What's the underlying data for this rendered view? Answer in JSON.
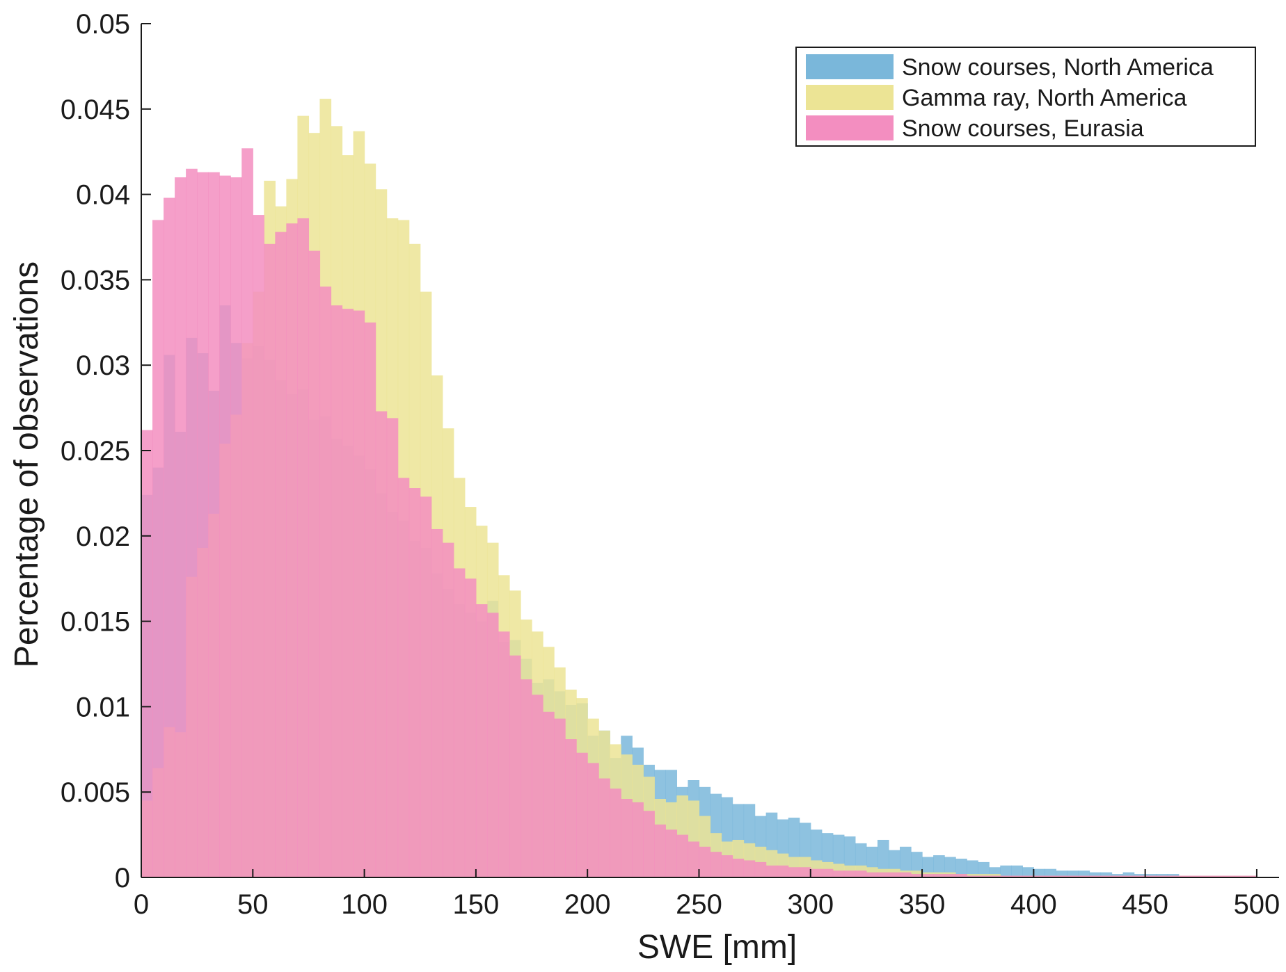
{
  "chart_data": {
    "type": "bar",
    "subtype": "overlapping-histogram",
    "title": "",
    "xlabel": "SWE [mm]",
    "ylabel": "Percentage of observations",
    "xlim": [
      0,
      510
    ],
    "ylim": [
      0,
      0.05
    ],
    "xticks": [
      0,
      50,
      100,
      150,
      200,
      250,
      300,
      350,
      400,
      450,
      500
    ],
    "yticks": [
      0,
      0.005,
      0.01,
      0.015,
      0.02,
      0.025,
      0.03,
      0.035,
      0.04,
      0.045,
      0.05
    ],
    "ytick_labels": [
      "0",
      "0.005",
      "0.01",
      "0.015",
      "0.02",
      "0.025",
      "0.03",
      "0.035",
      "0.04",
      "0.045",
      "0.05"
    ],
    "bin_width": 5,
    "grid": false,
    "legend_position": "top-right",
    "series": [
      {
        "name": "Snow courses, North America",
        "color": "#7ab7da",
        "values": [
          0.0224,
          0.024,
          0.0306,
          0.0261,
          0.0316,
          0.0307,
          0.0285,
          0.0335,
          0.0313,
          0.0304,
          0.0311,
          0.0303,
          0.0291,
          0.0283,
          0.0286,
          0.0268,
          0.027,
          0.0257,
          0.0253,
          0.0247,
          0.0239,
          0.0225,
          0.0214,
          0.0209,
          0.0197,
          0.0193,
          0.0178,
          0.0169,
          0.016,
          0.0155,
          0.015,
          0.0162,
          0.0138,
          0.0139,
          0.0128,
          0.0114,
          0.0116,
          0.0109,
          0.0101,
          0.0102,
          0.0083,
          0.0086,
          0.007,
          0.0083,
          0.0076,
          0.0066,
          0.0063,
          0.0063,
          0.0053,
          0.0057,
          0.0053,
          0.0049,
          0.0047,
          0.0043,
          0.0043,
          0.0036,
          0.0038,
          0.0034,
          0.0035,
          0.0032,
          0.0028,
          0.0026,
          0.0025,
          0.0024,
          0.002,
          0.0018,
          0.0022,
          0.0016,
          0.0018,
          0.0015,
          0.0012,
          0.0013,
          0.0012,
          0.0011,
          0.001,
          0.0009,
          0.0006,
          0.0007,
          0.0007,
          0.0006,
          0.0005,
          0.0005,
          0.0004,
          0.0004,
          0.0004,
          0.0003,
          0.0003,
          0.0002,
          0.0003,
          0.0002,
          0.0002,
          0.0002,
          0.0002,
          0.0001,
          0.0001,
          0.0001,
          0.0001,
          0.0001,
          0.0001,
          0.0001
        ]
      },
      {
        "name": "Gamma ray, North America",
        "color": "#ece495",
        "values": [
          0.0045,
          0.0064,
          0.0088,
          0.0085,
          0.0176,
          0.0193,
          0.0213,
          0.0254,
          0.0271,
          0.0313,
          0.0343,
          0.0408,
          0.0393,
          0.0409,
          0.0446,
          0.0436,
          0.0456,
          0.044,
          0.0423,
          0.0437,
          0.0418,
          0.0403,
          0.0386,
          0.0385,
          0.0371,
          0.0343,
          0.0294,
          0.0263,
          0.0234,
          0.0217,
          0.0206,
          0.0196,
          0.0177,
          0.0168,
          0.0151,
          0.0144,
          0.0135,
          0.0123,
          0.011,
          0.0105,
          0.0093,
          0.0086,
          0.0078,
          0.0072,
          0.0066,
          0.0059,
          0.0046,
          0.0044,
          0.0048,
          0.0045,
          0.0036,
          0.0026,
          0.0021,
          0.0022,
          0.002,
          0.0018,
          0.0016,
          0.0014,
          0.0012,
          0.0012,
          0.001,
          0.0009,
          0.0008,
          0.0007,
          0.0007,
          0.0006,
          0.0005,
          0.0005,
          0.0004,
          0.0004,
          0.0003,
          0.0003,
          0.0003,
          0.0002,
          0.0002,
          0.0002,
          0.0002,
          0.0001,
          0.0001,
          0.0001,
          0.0001,
          0.0001,
          0.0001,
          0.0001,
          0.0001,
          0.0001,
          0.0001,
          0.0001,
          0.0001,
          0.0001,
          0.0001,
          0.0001,
          0.0001,
          0.0001,
          0.0001,
          0.0001,
          0.0001,
          0.0001,
          0.0001,
          0.0001
        ]
      },
      {
        "name": "Snow courses, Eurasia",
        "color": "#f38ec0",
        "values": [
          0.0262,
          0.0385,
          0.0398,
          0.041,
          0.0415,
          0.0413,
          0.0413,
          0.0411,
          0.041,
          0.0427,
          0.0388,
          0.0371,
          0.0378,
          0.0383,
          0.0386,
          0.0367,
          0.0346,
          0.0335,
          0.0333,
          0.0332,
          0.0325,
          0.0273,
          0.0269,
          0.0234,
          0.0228,
          0.0223,
          0.0204,
          0.0196,
          0.0181,
          0.0175,
          0.016,
          0.0155,
          0.0144,
          0.013,
          0.0116,
          0.0107,
          0.0097,
          0.0093,
          0.0081,
          0.0073,
          0.0067,
          0.0058,
          0.0052,
          0.0046,
          0.0044,
          0.0039,
          0.0031,
          0.0028,
          0.0025,
          0.0021,
          0.0018,
          0.0015,
          0.0013,
          0.0011,
          0.001,
          0.0009,
          0.0007,
          0.0007,
          0.0006,
          0.0006,
          0.0005,
          0.0005,
          0.0004,
          0.0004,
          0.0004,
          0.0003,
          0.0003,
          0.0003,
          0.0003,
          0.0002,
          0.0002,
          0.0002,
          0.0002,
          0.0002,
          0.0001,
          0.0001,
          0.0001,
          0.0001,
          0.0001,
          0.0001,
          0.0001,
          0.0001,
          0.0001,
          0.0001,
          0.0001,
          0.0001,
          0.0001,
          0.0001,
          0.0001,
          0.0001,
          0.0001,
          0.0001,
          0.0001,
          0.0001,
          0.0001,
          0.0001,
          0.0001,
          0.0001,
          0.0001,
          0.0001
        ]
      }
    ]
  }
}
